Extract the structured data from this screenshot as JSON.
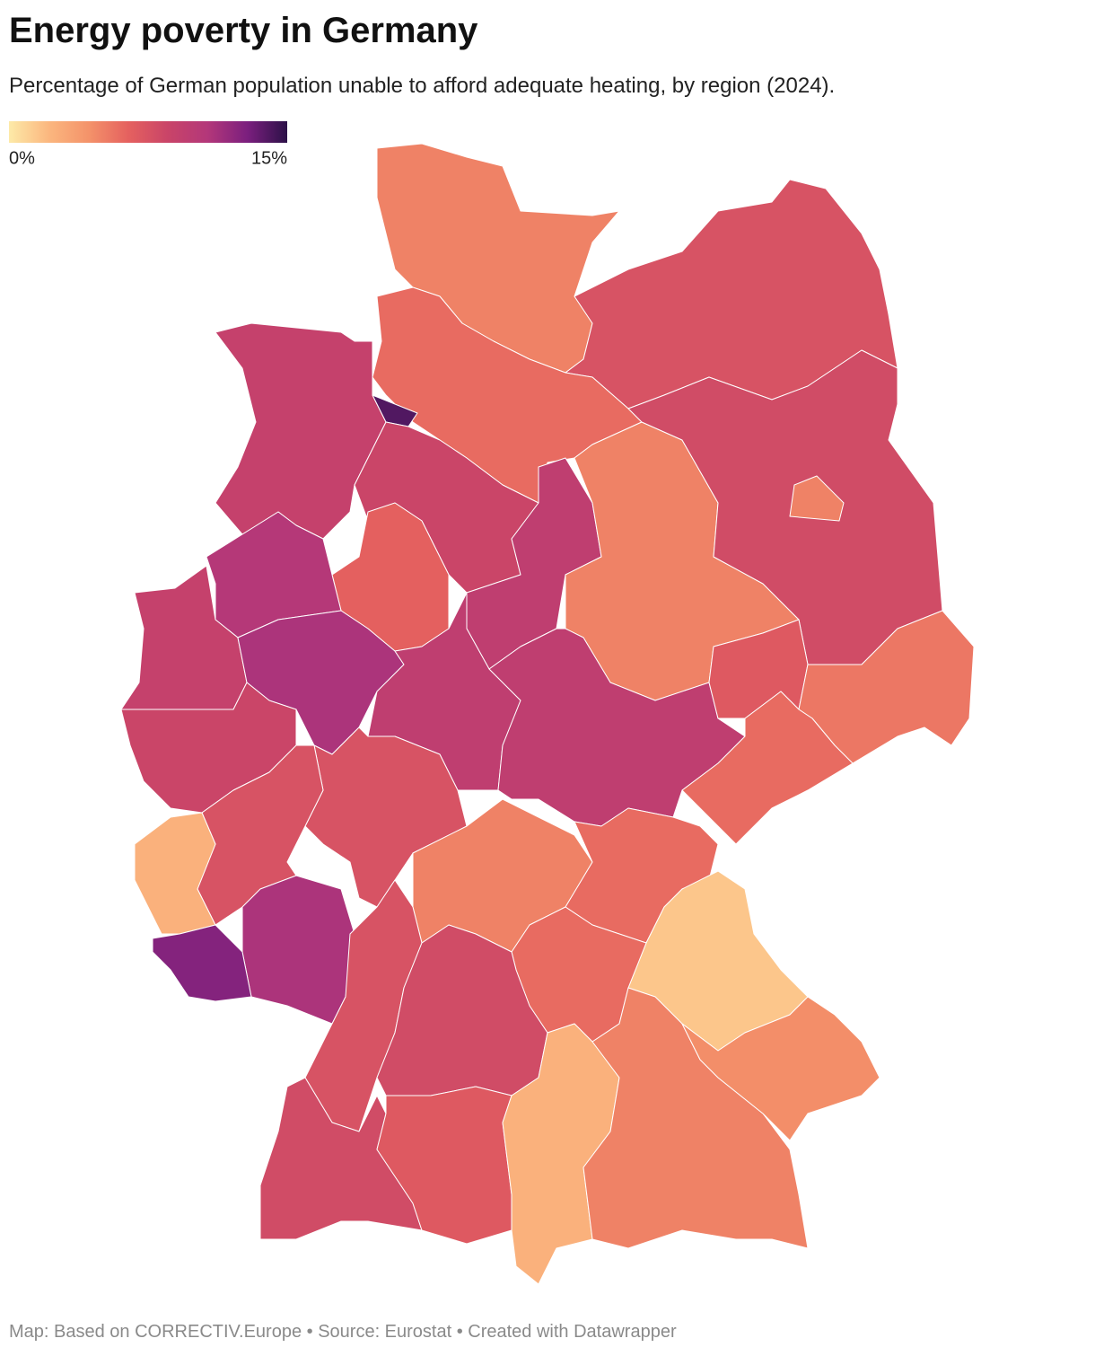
{
  "map": {
    "type": "choropleth",
    "title": "Energy poverty in Germany",
    "subtitle": "Percentage of German population unable to afford adequate heating, by region (2024).",
    "legend": {
      "ticks": [
        {
          "value": 0,
          "label": "0%"
        },
        {
          "value": 15,
          "label": "15%"
        }
      ],
      "colors": [
        "#fdeaa8",
        "#fbb77f",
        "#f4936a",
        "#e5615f",
        "#c94468",
        "#b3377a",
        "#7b1f7e",
        "#2c1148"
      ]
    },
    "values": [
      5,
      7.5,
      6,
      9,
      14,
      8.5,
      6.5,
      9.5,
      10.5,
      9,
      11,
      8.5,
      9.5,
      5,
      8,
      5,
      9.5,
      7,
      5.5,
      6,
      7.5,
      7.5,
      2.5,
      11,
      12.5,
      5,
      6,
      1.5,
      6,
      7.5,
      8,
      8,
      7,
      2.5,
      5,
      4.5
    ],
    "footer": "Map: Based on CORRECTIV.Europe • Source: Eurostat • Created with Datawrapper"
  }
}
